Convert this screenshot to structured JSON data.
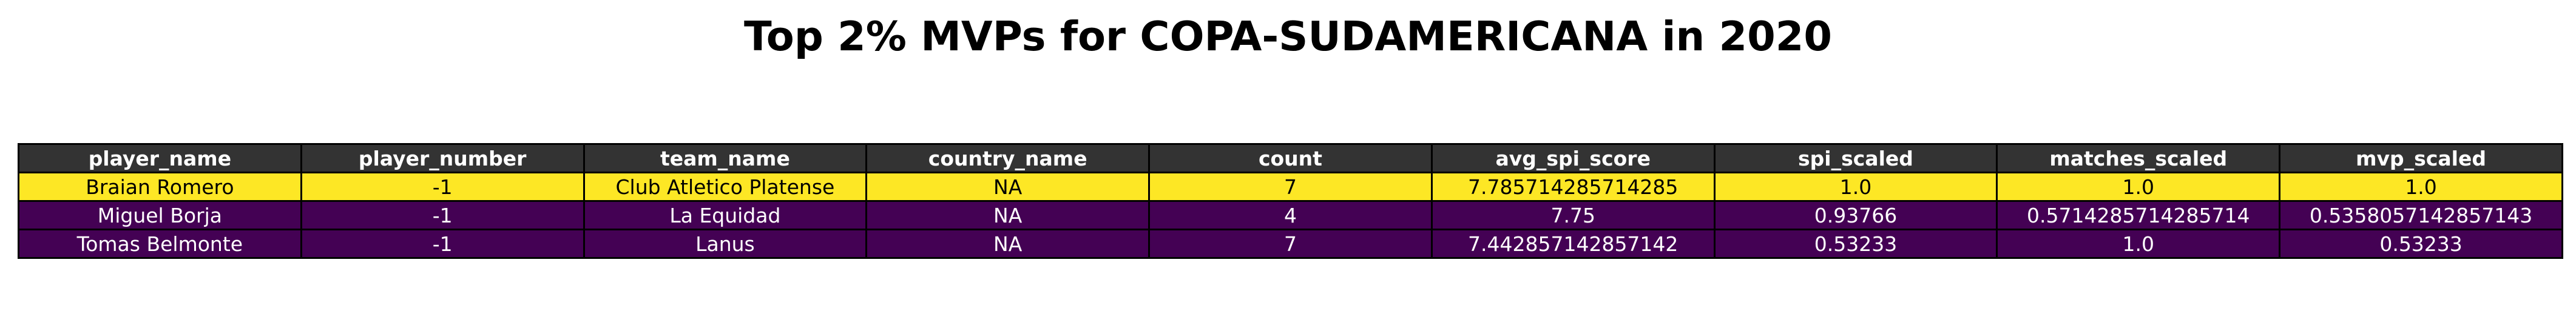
{
  "chart_data": {
    "type": "table",
    "title": "Top 2% MVPs for COPA-SUDAMERICANA in 2020",
    "columns": [
      "player_name",
      "player_number",
      "team_name",
      "country_name",
      "count",
      "avg_spi_score",
      "spi_scaled",
      "matches_scaled",
      "mvp_scaled"
    ],
    "header_style": {
      "background": "#333333",
      "color": "#ffffff"
    },
    "rows": [
      {
        "cells": [
          "Braian Romero",
          "-1",
          "Club Atletico Platense",
          "NA",
          "7",
          "7.785714285714285",
          "1.0",
          "1.0",
          "1.0"
        ],
        "background": "#fde725",
        "color": "#000000"
      },
      {
        "cells": [
          "Miguel Borja",
          "-1",
          "La Equidad",
          "NA",
          "4",
          "7.75",
          "0.93766",
          "0.5714285714285714",
          "0.5358057142857143"
        ],
        "background": "#440154",
        "color": "#ffffff"
      },
      {
        "cells": [
          "Tomas Belmonte",
          "-1",
          "Lanus",
          "NA",
          "7",
          "7.442857142857142",
          "0.53233",
          "1.0",
          "0.53233"
        ],
        "background": "#440154",
        "color": "#ffffff"
      }
    ]
  }
}
